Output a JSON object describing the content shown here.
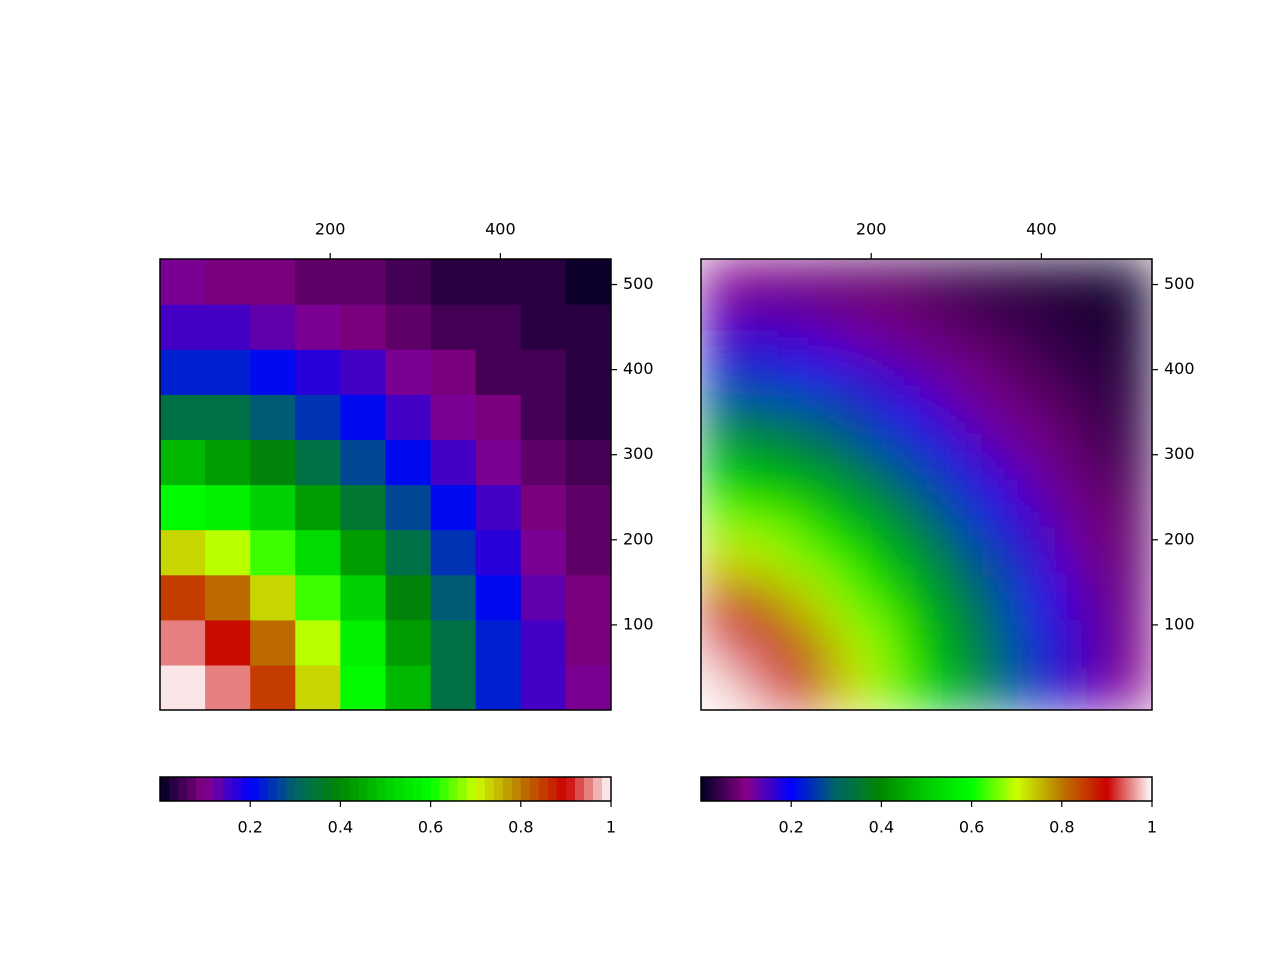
{
  "chart_data": [
    {
      "type": "heatmap",
      "shading": "discrete",
      "levels": 50,
      "x": [
        26.5,
        79.5,
        132.5,
        185.5,
        238.5,
        291.5,
        344.5,
        397.5,
        450.5,
        503.5
      ],
      "y": [
        26.5,
        79.5,
        132.5,
        185.5,
        238.5,
        291.5,
        344.5,
        397.5,
        450.5,
        503.5
      ],
      "z": [
        [
          0.99,
          0.94,
          0.85,
          0.72,
          0.59,
          0.46,
          0.33,
          0.23,
          0.15,
          0.1
        ],
        [
          0.94,
          0.89,
          0.8,
          0.69,
          0.56,
          0.43,
          0.32,
          0.22,
          0.15,
          0.09
        ],
        [
          0.85,
          0.8,
          0.72,
          0.62,
          0.5,
          0.39,
          0.29,
          0.2,
          0.13,
          0.08
        ],
        [
          0.72,
          0.69,
          0.62,
          0.53,
          0.43,
          0.33,
          0.25,
          0.17,
          0.11,
          0.07
        ],
        [
          0.59,
          0.56,
          0.5,
          0.43,
          0.35,
          0.27,
          0.2,
          0.14,
          0.09,
          0.06
        ],
        [
          0.46,
          0.43,
          0.39,
          0.33,
          0.27,
          0.21,
          0.15,
          0.11,
          0.07,
          0.04
        ],
        [
          0.33,
          0.32,
          0.29,
          0.25,
          0.2,
          0.15,
          0.11,
          0.08,
          0.05,
          0.03
        ],
        [
          0.23,
          0.22,
          0.2,
          0.17,
          0.14,
          0.11,
          0.08,
          0.05,
          0.04,
          0.02
        ],
        [
          0.15,
          0.15,
          0.13,
          0.11,
          0.09,
          0.07,
          0.05,
          0.04,
          0.02,
          0.02
        ],
        [
          0.1,
          0.09,
          0.08,
          0.07,
          0.06,
          0.04,
          0.03,
          0.02,
          0.02,
          0.01
        ]
      ],
      "xlim": [
        0,
        530
      ],
      "ylim": [
        0,
        530
      ],
      "xticks": [
        200,
        400
      ],
      "yticks": [
        100,
        200,
        300,
        400,
        500
      ],
      "colormap": [
        "#000022",
        "#880088",
        "#0000ff",
        "#006666",
        "#008800",
        "#00cc00",
        "#00ff00",
        "#ccff00",
        "#bb7700",
        "#cc0000",
        "#ffffff"
      ],
      "clim": [
        0,
        1
      ],
      "cticks": [
        0.2,
        0.4,
        0.6,
        0.8,
        1
      ]
    },
    {
      "type": "heatmap",
      "shading": "smooth",
      "x": [
        26.5,
        79.5,
        132.5,
        185.5,
        238.5,
        291.5,
        344.5,
        397.5,
        450.5,
        503.5
      ],
      "y": [
        26.5,
        79.5,
        132.5,
        185.5,
        238.5,
        291.5,
        344.5,
        397.5,
        450.5,
        503.5
      ],
      "z": [
        [
          0.99,
          0.94,
          0.85,
          0.72,
          0.59,
          0.46,
          0.33,
          0.23,
          0.15,
          0.1
        ],
        [
          0.94,
          0.89,
          0.8,
          0.69,
          0.56,
          0.43,
          0.32,
          0.22,
          0.15,
          0.09
        ],
        [
          0.85,
          0.8,
          0.72,
          0.62,
          0.5,
          0.39,
          0.29,
          0.2,
          0.13,
          0.08
        ],
        [
          0.72,
          0.69,
          0.62,
          0.53,
          0.43,
          0.33,
          0.25,
          0.17,
          0.11,
          0.07
        ],
        [
          0.59,
          0.56,
          0.5,
          0.43,
          0.35,
          0.27,
          0.2,
          0.14,
          0.09,
          0.06
        ],
        [
          0.46,
          0.43,
          0.39,
          0.33,
          0.27,
          0.21,
          0.15,
          0.11,
          0.07,
          0.04
        ],
        [
          0.33,
          0.32,
          0.29,
          0.25,
          0.2,
          0.15,
          0.11,
          0.08,
          0.05,
          0.03
        ],
        [
          0.23,
          0.22,
          0.2,
          0.17,
          0.14,
          0.11,
          0.08,
          0.05,
          0.04,
          0.02
        ],
        [
          0.15,
          0.15,
          0.13,
          0.11,
          0.09,
          0.07,
          0.05,
          0.04,
          0.02,
          0.02
        ],
        [
          0.1,
          0.09,
          0.08,
          0.07,
          0.06,
          0.04,
          0.03,
          0.02,
          0.02,
          0.01
        ]
      ],
      "xlim": [
        0,
        530
      ],
      "ylim": [
        0,
        530
      ],
      "xticks": [
        200,
        400
      ],
      "yticks": [
        100,
        200,
        300,
        400,
        500
      ],
      "colormap": [
        "#000022",
        "#880088",
        "#0000ff",
        "#006666",
        "#008800",
        "#00cc00",
        "#00ff00",
        "#ccff00",
        "#bb7700",
        "#cc0000",
        "#ffffff"
      ],
      "clim": [
        0,
        1
      ],
      "cticks": [
        0.2,
        0.4,
        0.6,
        0.8,
        1
      ]
    }
  ]
}
